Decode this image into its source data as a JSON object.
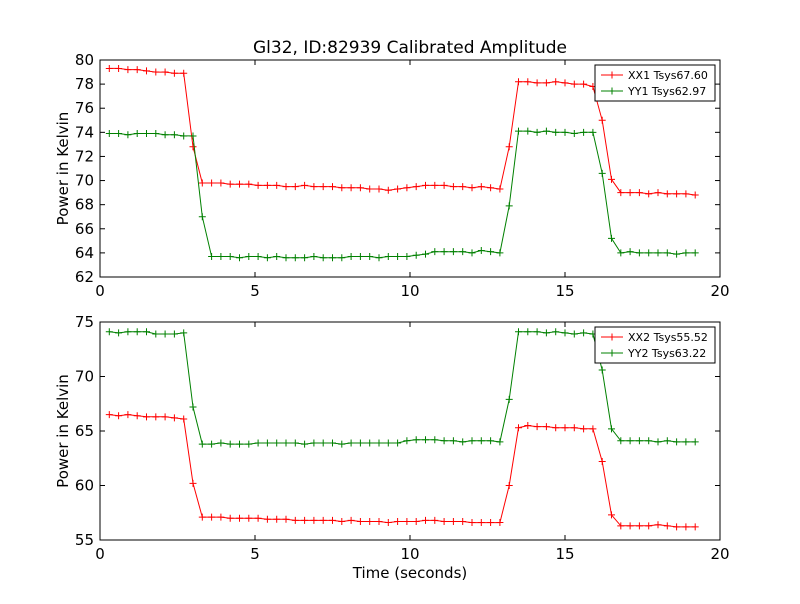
{
  "figure_title": "Gl32, ID:82939 Calibrated Amplitude",
  "xlabel": "Time (seconds)",
  "chart_data": [
    {
      "type": "line",
      "title": "Gl32, ID:82939 Calibrated Amplitude",
      "xlabel": "",
      "ylabel": "Power in Kelvin",
      "xlim": [
        0,
        20
      ],
      "ylim": [
        62,
        80
      ],
      "xticks": [
        0,
        5,
        10,
        15,
        20
      ],
      "yticks": [
        62,
        64,
        66,
        68,
        70,
        72,
        74,
        76,
        78,
        80
      ],
      "grid": false,
      "legend_position": "top-right",
      "x": [
        0.3,
        0.6,
        0.9,
        1.2,
        1.5,
        1.8,
        2.1,
        2.4,
        2.7,
        3.0,
        3.3,
        3.6,
        3.9,
        4.2,
        4.5,
        4.8,
        5.1,
        5.4,
        5.7,
        6.0,
        6.3,
        6.6,
        6.9,
        7.2,
        7.5,
        7.8,
        8.1,
        8.4,
        8.7,
        9.0,
        9.3,
        9.6,
        9.9,
        10.2,
        10.5,
        10.8,
        11.1,
        11.4,
        11.7,
        12.0,
        12.3,
        12.6,
        12.9,
        13.2,
        13.5,
        13.8,
        14.1,
        14.4,
        14.7,
        15.0,
        15.3,
        15.6,
        15.9,
        16.2,
        16.5,
        16.8,
        17.1,
        17.4,
        17.7,
        18.0,
        18.3,
        18.6,
        18.9,
        19.2
      ],
      "series": [
        {
          "name": "XX1 Tsys67.60",
          "color": "#ff0000",
          "values": [
            79.3,
            79.3,
            79.2,
            79.2,
            79.1,
            79.0,
            79.0,
            78.9,
            78.9,
            72.8,
            69.8,
            69.8,
            69.8,
            69.7,
            69.7,
            69.7,
            69.6,
            69.6,
            69.6,
            69.5,
            69.5,
            69.6,
            69.5,
            69.5,
            69.5,
            69.4,
            69.4,
            69.4,
            69.3,
            69.3,
            69.2,
            69.3,
            69.4,
            69.5,
            69.6,
            69.6,
            69.6,
            69.5,
            69.5,
            69.4,
            69.5,
            69.4,
            69.3,
            72.8,
            78.2,
            78.2,
            78.1,
            78.1,
            78.2,
            78.1,
            78.0,
            78.0,
            77.8,
            75.0,
            70.1,
            69.0,
            69.0,
            69.0,
            68.9,
            69.0,
            68.9,
            68.9,
            68.9,
            68.8
          ]
        },
        {
          "name": "YY1 Tsys62.97",
          "color": "#008000",
          "values": [
            73.9,
            73.9,
            73.8,
            73.9,
            73.9,
            73.9,
            73.8,
            73.8,
            73.7,
            73.7,
            67.0,
            63.7,
            63.7,
            63.7,
            63.6,
            63.7,
            63.7,
            63.6,
            63.7,
            63.6,
            63.6,
            63.6,
            63.7,
            63.6,
            63.6,
            63.6,
            63.7,
            63.7,
            63.7,
            63.6,
            63.7,
            63.7,
            63.7,
            63.8,
            63.9,
            64.1,
            64.1,
            64.1,
            64.1,
            64.0,
            64.2,
            64.1,
            64.0,
            67.9,
            74.1,
            74.1,
            74.0,
            74.1,
            74.0,
            74.0,
            73.9,
            74.0,
            74.0,
            70.6,
            65.2,
            64.0,
            64.1,
            64.0,
            64.0,
            64.0,
            64.0,
            63.9,
            64.0,
            64.0
          ]
        }
      ]
    },
    {
      "type": "line",
      "title": "",
      "xlabel": "Time (seconds)",
      "ylabel": "Power in Kelvin",
      "xlim": [
        0,
        20
      ],
      "ylim": [
        55,
        75
      ],
      "xticks": [
        0,
        5,
        10,
        15,
        20
      ],
      "yticks": [
        55,
        60,
        65,
        70,
        75
      ],
      "grid": false,
      "legend_position": "top-right",
      "x": [
        0.3,
        0.6,
        0.9,
        1.2,
        1.5,
        1.8,
        2.1,
        2.4,
        2.7,
        3.0,
        3.3,
        3.6,
        3.9,
        4.2,
        4.5,
        4.8,
        5.1,
        5.4,
        5.7,
        6.0,
        6.3,
        6.6,
        6.9,
        7.2,
        7.5,
        7.8,
        8.1,
        8.4,
        8.7,
        9.0,
        9.3,
        9.6,
        9.9,
        10.2,
        10.5,
        10.8,
        11.1,
        11.4,
        11.7,
        12.0,
        12.3,
        12.6,
        12.9,
        13.2,
        13.5,
        13.8,
        14.1,
        14.4,
        14.7,
        15.0,
        15.3,
        15.6,
        15.9,
        16.2,
        16.5,
        16.8,
        17.1,
        17.4,
        17.7,
        18.0,
        18.3,
        18.6,
        18.9,
        19.2
      ],
      "series": [
        {
          "name": "XX2 Tsys55.52",
          "color": "#ff0000",
          "values": [
            66.5,
            66.4,
            66.5,
            66.4,
            66.3,
            66.3,
            66.3,
            66.2,
            66.1,
            60.2,
            57.1,
            57.1,
            57.1,
            57.0,
            57.0,
            57.0,
            57.0,
            56.9,
            56.9,
            56.9,
            56.8,
            56.8,
            56.8,
            56.8,
            56.8,
            56.7,
            56.8,
            56.7,
            56.7,
            56.7,
            56.6,
            56.7,
            56.7,
            56.7,
            56.8,
            56.8,
            56.7,
            56.7,
            56.7,
            56.6,
            56.6,
            56.6,
            56.6,
            60.0,
            65.3,
            65.5,
            65.4,
            65.4,
            65.3,
            65.3,
            65.3,
            65.2,
            65.2,
            62.2,
            57.3,
            56.3,
            56.3,
            56.3,
            56.3,
            56.4,
            56.3,
            56.2,
            56.2,
            56.2
          ]
        },
        {
          "name": "YY2 Tsys63.22",
          "color": "#008000",
          "values": [
            74.1,
            74.0,
            74.1,
            74.1,
            74.1,
            73.9,
            73.9,
            73.9,
            74.0,
            67.2,
            63.8,
            63.8,
            63.9,
            63.8,
            63.8,
            63.8,
            63.9,
            63.9,
            63.9,
            63.9,
            63.9,
            63.8,
            63.9,
            63.9,
            63.9,
            63.8,
            63.9,
            63.9,
            63.9,
            63.9,
            63.9,
            63.9,
            64.1,
            64.2,
            64.2,
            64.2,
            64.1,
            64.1,
            64.0,
            64.1,
            64.1,
            64.1,
            64.0,
            67.9,
            74.1,
            74.1,
            74.1,
            74.0,
            74.1,
            74.0,
            73.9,
            74.0,
            73.9,
            70.6,
            65.2,
            64.1,
            64.1,
            64.1,
            64.1,
            64.0,
            64.1,
            64.0,
            64.0,
            64.0
          ]
        }
      ]
    }
  ]
}
